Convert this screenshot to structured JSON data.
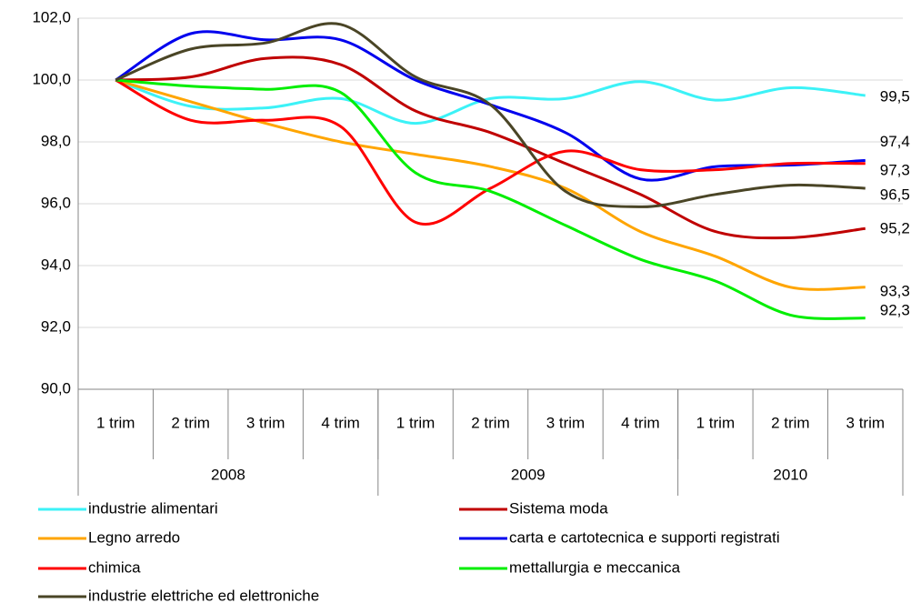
{
  "chart_data": {
    "type": "line",
    "categories": [
      "1 trim",
      "2 trim",
      "3 trim",
      "4 trim",
      "1 trim",
      "2 trim",
      "3 trim",
      "4 trim",
      "1 trim",
      "2 trim",
      "3 trim"
    ],
    "category_groups": [
      {
        "label": "2008",
        "count": 4
      },
      {
        "label": "2009",
        "count": 4
      },
      {
        "label": "2010",
        "count": 3
      }
    ],
    "ylim": [
      90,
      102
    ],
    "yticks": [
      {
        "value": 90,
        "label": "90,0"
      },
      {
        "value": 92,
        "label": "92,0"
      },
      {
        "value": 94,
        "label": "94,0"
      },
      {
        "value": 96,
        "label": "96,0"
      },
      {
        "value": 98,
        "label": "98,0"
      },
      {
        "value": 100,
        "label": "100,0"
      },
      {
        "value": 102,
        "label": "102,0"
      }
    ],
    "grid": true,
    "legend": "bottom",
    "series": [
      {
        "name": "industrie alimentari",
        "color": "#3cf2f7",
        "values": [
          100,
          99.15,
          99.1,
          99.4,
          98.6,
          99.4,
          99.4,
          99.95,
          99.35,
          99.75,
          99.5
        ],
        "value_labels": [
          null,
          null,
          null,
          null,
          null,
          null,
          null,
          null,
          null,
          null,
          "99,5"
        ]
      },
      {
        "name": "Sistema moda",
        "color": "#c00000",
        "values": [
          100,
          100.1,
          100.7,
          100.5,
          99.0,
          98.3,
          97.3,
          96.3,
          95.1,
          94.9,
          95.2
        ],
        "value_labels": [
          null,
          null,
          null,
          null,
          null,
          null,
          null,
          null,
          null,
          null,
          "95,2"
        ]
      },
      {
        "name": "Legno arredo",
        "color": "#ffa500",
        "values": [
          100,
          99.3,
          98.6,
          98.0,
          97.6,
          97.2,
          96.5,
          95.1,
          94.3,
          93.3,
          93.3
        ],
        "value_labels": [
          null,
          null,
          null,
          null,
          null,
          null,
          null,
          null,
          null,
          null,
          "93,3"
        ]
      },
      {
        "name": "carta e cartotecnica e supporti registrati",
        "color": "#0000ee",
        "values": [
          100,
          101.5,
          101.3,
          101.3,
          100.0,
          99.2,
          98.3,
          96.8,
          97.2,
          97.25,
          97.4
        ],
        "value_labels": [
          null,
          null,
          null,
          null,
          null,
          null,
          null,
          null,
          null,
          null,
          "97,4"
        ]
      },
      {
        "name": "chimica",
        "color": "#ff0000",
        "values": [
          100,
          98.7,
          98.7,
          98.5,
          95.4,
          96.5,
          97.7,
          97.1,
          97.1,
          97.3,
          97.3
        ],
        "value_labels": [
          null,
          null,
          null,
          null,
          null,
          null,
          null,
          null,
          null,
          null,
          "97,3"
        ]
      },
      {
        "name": "mettallurgia e meccanica",
        "color": "#00ee00",
        "values": [
          100,
          99.8,
          99.7,
          99.6,
          97.0,
          96.4,
          95.3,
          94.2,
          93.5,
          92.4,
          92.3
        ],
        "value_labels": [
          null,
          null,
          null,
          null,
          null,
          null,
          null,
          null,
          null,
          null,
          "92,3"
        ]
      },
      {
        "name": "industrie elettriche ed elettroniche",
        "color": "#4a4526",
        "values": [
          100,
          101.0,
          101.2,
          101.8,
          100.1,
          99.2,
          96.4,
          95.9,
          96.3,
          96.6,
          96.5
        ],
        "value_labels": [
          null,
          null,
          null,
          null,
          null,
          null,
          null,
          null,
          null,
          null,
          "96,5"
        ]
      }
    ]
  }
}
